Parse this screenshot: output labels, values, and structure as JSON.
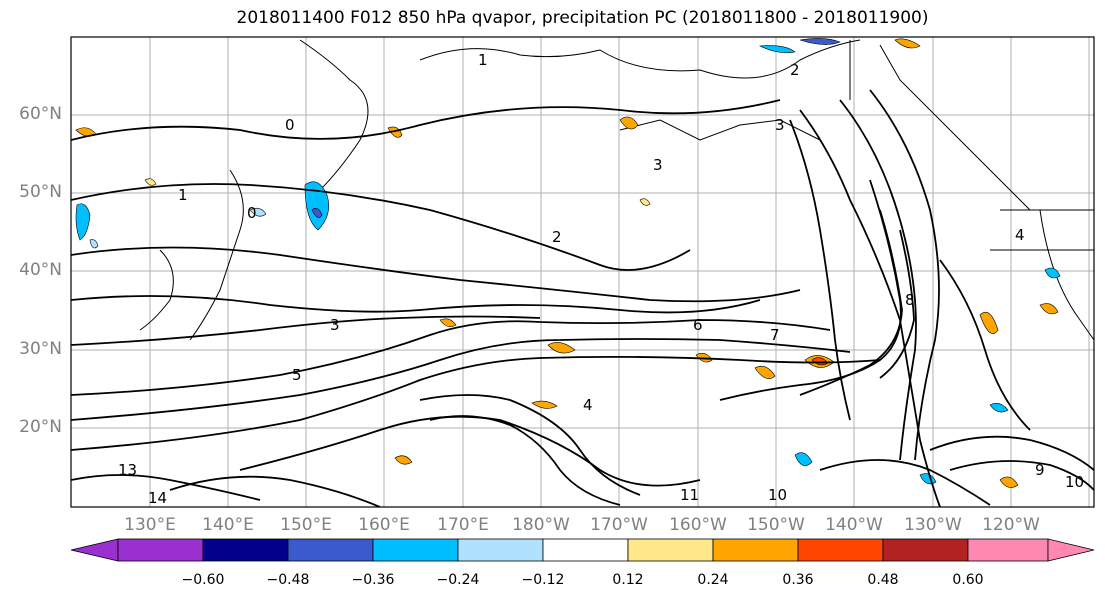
{
  "title": "2018011400 F012 850 hPa qvapor, precipitation PC (2018011800 - 2018011900)",
  "map": {
    "lat_labels": [
      "60°N",
      "50°N",
      "40°N",
      "30°N",
      "20°N"
    ],
    "lon_labels": [
      "130°E",
      "140°E",
      "150°E",
      "160°E",
      "170°E",
      "180°W",
      "170°W",
      "160°W",
      "150°W",
      "140°W",
      "130°W",
      "120°W"
    ],
    "contour_labels": [
      "0",
      "1",
      "2",
      "3",
      "4",
      "5",
      "6",
      "7",
      "8",
      "9",
      "10",
      "11",
      "13",
      "14"
    ]
  },
  "colorbar": {
    "ticks": [
      "−0.60",
      "−0.48",
      "−0.36",
      "−0.24",
      "−0.12",
      "0.12",
      "0.24",
      "0.36",
      "0.48",
      "0.60"
    ],
    "colors": [
      "#9b30d0",
      "#00008b",
      "#3a5bcd",
      "#00bfff",
      "#b0e2ff",
      "#ffffff",
      "#ffe98a",
      "#ffa500",
      "#ff4500",
      "#b22222",
      "#ff88b0"
    ]
  }
}
